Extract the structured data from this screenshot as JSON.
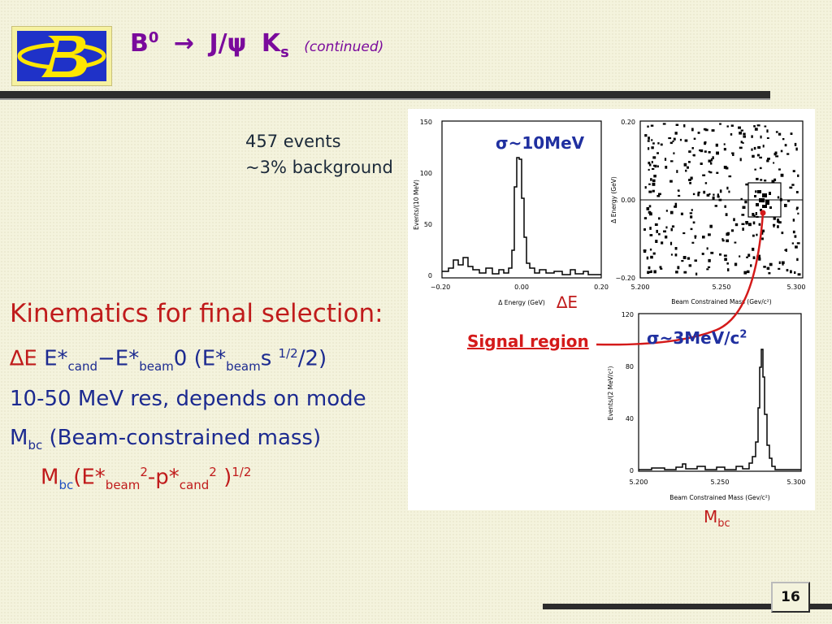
{
  "header": {
    "title_B": "B",
    "title_B_sup": "0",
    "title_arrow": "→",
    "title_Jpsi": "J/ψ",
    "title_K": "K",
    "title_K_sub": "s",
    "continued": "(continued)"
  },
  "notes": {
    "events": "457 events",
    "background": "~3% background"
  },
  "kinematics": {
    "heading": "Kinematics for final selection:",
    "line1": {
      "delta": "∆E",
      "box1": "",
      "e_cand": "E*",
      "cand_sub": "cand",
      "minus": "−E*",
      "beam_sub": "beam",
      "box2": "",
      "zero": "0 (E*",
      "beam_sub2": "beam",
      "box3": "",
      "s": "s ",
      "half": "1/2",
      "tail": "/2)"
    },
    "line2": "10-50 MeV res, depends on mode",
    "line3": {
      "M": "M",
      "M_sub": "bc",
      "rest": " (Beam-constrained mass)"
    },
    "line4": {
      "M": "M",
      "M_sub": "bc",
      "box": "",
      "open": "(E*",
      "beam_sub": "beam",
      "sq1": "2",
      "mid": "-p*",
      "cand_sub": "cand",
      "sq2": "2",
      "close": " )",
      "half": "1/2"
    }
  },
  "figure": {
    "sigma_top": "σ~10MeV",
    "sigma_bottom": "σ~3MeV/c",
    "sigma_bottom_sup": "2",
    "signal_region": "Signal region",
    "dE_label": "∆E",
    "mbc_label": "M",
    "mbc_sub": "bc",
    "hist_dE": {
      "ylabel": "Events/(10 MeV)",
      "xlabel": "Δ Energy (GeV)",
      "yticks": [
        "0",
        "50",
        "100",
        "150"
      ],
      "xticks": [
        "−0.20",
        "0.00",
        "0.20"
      ]
    },
    "scatter": {
      "ylabel": "Δ Energy (GeV)",
      "xlabel": "Beam Constrained Mass (Gev/c²)",
      "yticks": [
        "−0.20",
        "0.00",
        "0.20"
      ],
      "xticks": [
        "5.200",
        "5.250",
        "5.300"
      ]
    },
    "hist_mbc": {
      "ylabel": "Events/(2 MeV/c²)",
      "xlabel": "Beam Constrained Mass (Gev/c²)",
      "yticks": [
        "0",
        "40",
        "80",
        "120"
      ],
      "xticks": [
        "5.200",
        "5.250",
        "5.300"
      ]
    }
  },
  "footer": {
    "page_number": "16"
  }
}
